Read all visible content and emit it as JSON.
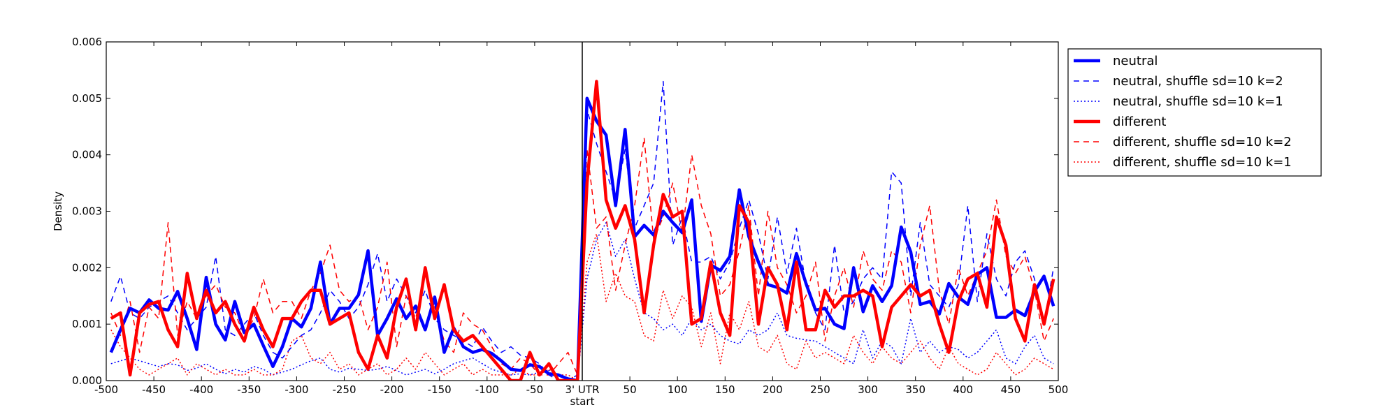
{
  "chart_data": {
    "type": "line",
    "xlabel": "",
    "ylabel": "Density",
    "xlim": [
      -500,
      500
    ],
    "ylim": [
      0,
      0.006
    ],
    "x_ticks": [
      -500,
      -450,
      -400,
      -350,
      -300,
      -250,
      -200,
      -150,
      -100,
      -50,
      0,
      50,
      100,
      150,
      200,
      250,
      300,
      350,
      400,
      450,
      500
    ],
    "x_tick_labels": [
      "-500",
      "-450",
      "-400",
      "-350",
      "-300",
      "-250",
      "-200",
      "-150",
      "-100",
      "-50",
      "3' UTR",
      "50",
      "100",
      "150",
      "200",
      "250",
      "300",
      "350",
      "400",
      "450",
      "500"
    ],
    "x_tick_label_extra": "start",
    "y_ticks": [
      0,
      0.001,
      0.002,
      0.003,
      0.004,
      0.005,
      0.006
    ],
    "y_tick_labels": [
      "0.000",
      "0.001",
      "0.002",
      "0.003",
      "0.004",
      "0.005",
      "0.006"
    ],
    "vline_x": 0,
    "grid": false,
    "legend_position": "outside top-right",
    "x": [
      -495,
      -485,
      -475,
      -465,
      -455,
      -445,
      -435,
      -425,
      -415,
      -405,
      -395,
      -385,
      -375,
      -365,
      -355,
      -345,
      -335,
      -325,
      -315,
      -305,
      -295,
      -285,
      -275,
      -265,
      -255,
      -245,
      -235,
      -225,
      -215,
      -205,
      -195,
      -185,
      -175,
      -165,
      -155,
      -145,
      -135,
      -125,
      -115,
      -105,
      -95,
      -85,
      -75,
      -65,
      -55,
      -45,
      -35,
      -25,
      -15,
      -5,
      5,
      15,
      25,
      35,
      45,
      55,
      65,
      75,
      85,
      95,
      105,
      115,
      125,
      135,
      145,
      155,
      165,
      175,
      185,
      195,
      205,
      215,
      225,
      235,
      245,
      255,
      265,
      275,
      285,
      295,
      305,
      315,
      325,
      335,
      345,
      355,
      365,
      375,
      385,
      395,
      405,
      415,
      425,
      435,
      445,
      455,
      465,
      475,
      485,
      495
    ],
    "series": [
      {
        "name": "neutral",
        "color": "#0000ff",
        "style": "solid-thick",
        "values": [
          0.0005,
          0.0009,
          0.00128,
          0.0012,
          0.00143,
          0.00128,
          0.00125,
          0.00158,
          0.0011,
          0.00055,
          0.00183,
          0.001,
          0.00072,
          0.0014,
          0.00085,
          0.001,
          0.00062,
          0.00025,
          0.0006,
          0.0011,
          0.00095,
          0.00128,
          0.0021,
          0.001,
          0.00128,
          0.00128,
          0.00152,
          0.0023,
          0.0008,
          0.0011,
          0.00145,
          0.0011,
          0.00132,
          0.0009,
          0.00148,
          0.0005,
          0.00093,
          0.0006,
          0.0005,
          0.00055,
          0.00048,
          0.00035,
          0.0002,
          0.00018,
          0.00028,
          0.00025,
          0.00012,
          0.0001,
          3e-05,
          0.0,
          0.005,
          0.0046,
          0.00435,
          0.0031,
          0.00445,
          0.00255,
          0.00275,
          0.00258,
          0.003,
          0.0028,
          0.00262,
          0.0032,
          0.00105,
          0.00205,
          0.00195,
          0.0022,
          0.00338,
          0.00255,
          0.0021,
          0.0017,
          0.00165,
          0.00155,
          0.00225,
          0.00172,
          0.00125,
          0.00128,
          0.001,
          0.00092,
          0.002,
          0.00122,
          0.00168,
          0.0014,
          0.00168,
          0.00272,
          0.00228,
          0.00135,
          0.0014,
          0.00118,
          0.00172,
          0.00148,
          0.00135,
          0.00188,
          0.002,
          0.00112,
          0.00112,
          0.00125,
          0.00115,
          0.00158,
          0.00185,
          0.00132
        ]
      },
      {
        "name": "neutral, shuffle sd=10 k=2",
        "color": "#0000ff",
        "style": "dashed",
        "values": [
          0.0014,
          0.00185,
          0.0012,
          0.0011,
          0.0013,
          0.0014,
          0.0015,
          0.0012,
          0.0009,
          0.0011,
          0.0013,
          0.0022,
          0.0009,
          0.0008,
          0.001,
          0.0012,
          0.0008,
          0.0005,
          0.0004,
          0.0006,
          0.0008,
          0.0009,
          0.0012,
          0.0016,
          0.0014,
          0.0011,
          0.0013,
          0.0017,
          0.00225,
          0.0014,
          0.0018,
          0.0015,
          0.0012,
          0.0016,
          0.0011,
          0.0009,
          0.0008,
          0.0007,
          0.0006,
          0.00095,
          0.0007,
          0.0005,
          0.0006,
          0.00045,
          0.0004,
          0.0003,
          0.0001,
          0.0,
          0.0,
          0.0001,
          0.0048,
          0.0042,
          0.0037,
          0.0032,
          0.0041,
          0.0027,
          0.0031,
          0.0035,
          0.0053,
          0.0024,
          0.0029,
          0.0021,
          0.0021,
          0.0022,
          0.0018,
          0.0021,
          0.0027,
          0.0032,
          0.0026,
          0.0018,
          0.0029,
          0.0019,
          0.0027,
          0.0017,
          0.0012,
          0.0009,
          0.0024,
          0.0012,
          0.0014,
          0.0018,
          0.002,
          0.0018,
          0.0037,
          0.0035,
          0.0015,
          0.0028,
          0.0017,
          0.0015,
          0.0013,
          0.0017,
          0.0031,
          0.0014,
          0.0026,
          0.0018,
          0.0015,
          0.0021,
          0.0023,
          0.0018,
          0.001,
          0.002
        ]
      },
      {
        "name": "neutral, shuffle sd=10 k=1",
        "color": "#0000ff",
        "style": "dotted",
        "values": [
          0.0003,
          0.00035,
          0.0004,
          0.00035,
          0.0003,
          0.00025,
          0.0003,
          0.00028,
          0.00018,
          0.00022,
          0.0003,
          0.0002,
          0.00012,
          0.0002,
          0.00015,
          0.00025,
          0.0002,
          0.0001,
          0.00015,
          0.0002,
          0.00028,
          0.00035,
          0.0004,
          0.0002,
          0.00015,
          0.00022,
          0.0002,
          0.00018,
          0.0002,
          0.00025,
          0.00018,
          0.0001,
          0.00015,
          0.0002,
          0.00012,
          0.0002,
          0.0003,
          0.00035,
          0.0004,
          0.0003,
          0.0002,
          0.00015,
          0.0001,
          0.00012,
          0.0001,
          0.00015,
          0.00018,
          0.0001,
          5e-05,
          0.0,
          0.0018,
          0.0025,
          0.0028,
          0.0022,
          0.0025,
          0.0018,
          0.0012,
          0.0011,
          0.0009,
          0.001,
          0.0008,
          0.0011,
          0.0009,
          0.001,
          0.0008,
          0.0007,
          0.00065,
          0.0009,
          0.0008,
          0.0009,
          0.0012,
          0.0008,
          0.00075,
          0.00072,
          0.0007,
          0.0006,
          0.0005,
          0.0004,
          0.0003,
          0.0009,
          0.0004,
          0.0007,
          0.0006,
          0.0003,
          0.0011,
          0.0005,
          0.0007,
          0.0005,
          0.0006,
          0.00055,
          0.0004,
          0.0005,
          0.0007,
          0.0009,
          0.0004,
          0.0003,
          0.0006,
          0.0008,
          0.0004,
          0.0003
        ]
      },
      {
        "name": "different",
        "color": "#ff0000",
        "style": "solid-thick",
        "values": [
          0.0011,
          0.0012,
          0.0001,
          0.0012,
          0.00135,
          0.0014,
          0.0009,
          0.0006,
          0.0019,
          0.0011,
          0.0016,
          0.0012,
          0.0014,
          0.001,
          0.0007,
          0.0013,
          0.0009,
          0.0006,
          0.0011,
          0.0011,
          0.0014,
          0.0016,
          0.0016,
          0.001,
          0.0011,
          0.0012,
          0.0005,
          0.0002,
          0.0008,
          0.0004,
          0.0013,
          0.0018,
          0.0009,
          0.002,
          0.0011,
          0.0017,
          0.0009,
          0.0007,
          0.0008,
          0.0006,
          0.0004,
          0.0002,
          0.0,
          0.0,
          0.0005,
          0.0001,
          0.0003,
          0.0,
          0.0,
          0.0,
          0.0035,
          0.0053,
          0.0032,
          0.0027,
          0.0031,
          0.0025,
          0.0012,
          0.0024,
          0.0033,
          0.0029,
          0.003,
          0.001,
          0.0011,
          0.0021,
          0.0012,
          0.0008,
          0.0031,
          0.0028,
          0.001,
          0.002,
          0.0017,
          0.0009,
          0.0021,
          0.0009,
          0.0009,
          0.0016,
          0.0013,
          0.0015,
          0.0015,
          0.0016,
          0.0015,
          0.0006,
          0.0013,
          0.0015,
          0.0017,
          0.0015,
          0.0016,
          0.001,
          0.0005,
          0.0014,
          0.0018,
          0.0019,
          0.0013,
          0.0029,
          0.0024,
          0.0011,
          0.0007,
          0.0017,
          0.001,
          0.0018
        ]
      },
      {
        "name": "different, shuffle sd=10 k=2",
        "color": "#ff0000",
        "style": "dashed",
        "values": [
          0.0012,
          0.0008,
          0.0014,
          0.0005,
          0.0013,
          0.0011,
          0.0028,
          0.0008,
          0.0014,
          0.0011,
          0.0015,
          0.0017,
          0.0013,
          0.0012,
          0.0008,
          0.0011,
          0.0018,
          0.0012,
          0.0014,
          0.0014,
          0.0011,
          0.0016,
          0.0019,
          0.0024,
          0.0016,
          0.0014,
          0.0015,
          0.0009,
          0.0013,
          0.0021,
          0.0006,
          0.0015,
          0.0011,
          0.0019,
          0.0013,
          0.0007,
          0.0005,
          0.0012,
          0.001,
          0.0009,
          0.0006,
          0.0003,
          0.0002,
          0.0004,
          0.0003,
          0.0001,
          0.0001,
          0.0003,
          0.0005,
          0.0001,
          0.0041,
          0.0027,
          0.0029,
          0.0016,
          0.0024,
          0.0031,
          0.0043,
          0.0025,
          0.0029,
          0.0035,
          0.0026,
          0.004,
          0.0031,
          0.0026,
          0.0015,
          0.0017,
          0.0023,
          0.0031,
          0.0015,
          0.003,
          0.002,
          0.0017,
          0.0012,
          0.0015,
          0.0021,
          0.0007,
          0.0015,
          0.002,
          0.0013,
          0.0023,
          0.0018,
          0.0016,
          0.0023,
          0.0021,
          0.0012,
          0.0024,
          0.0031,
          0.0016,
          0.001,
          0.002,
          0.0015,
          0.0019,
          0.0023,
          0.0032,
          0.0022,
          0.0019,
          0.0022,
          0.0016,
          0.0007,
          0.0011
        ]
      },
      {
        "name": "different, shuffle sd=10 k=1",
        "color": "#ff0000",
        "style": "dotted",
        "values": [
          0.0009,
          0.0006,
          0.0004,
          0.0002,
          0.0001,
          0.0002,
          0.0003,
          0.0004,
          0.0001,
          0.0003,
          0.0002,
          0.0001,
          0.0002,
          0.0001,
          0.0001,
          0.0002,
          0.0001,
          0.0001,
          0.0002,
          0.0007,
          0.0008,
          0.0004,
          0.0003,
          0.0005,
          0.0002,
          0.0003,
          0.0001,
          0.0002,
          0.0003,
          0.0001,
          0.0002,
          0.0004,
          0.0002,
          0.0005,
          0.0003,
          0.0001,
          0.0002,
          0.0003,
          0.0001,
          0.0002,
          0.0001,
          0.0001,
          0.0001,
          0.0002,
          0.0001,
          0.0001,
          0.0002,
          0.0001,
          0.0001,
          0.0,
          0.0021,
          0.0026,
          0.0014,
          0.0019,
          0.0015,
          0.0014,
          0.0008,
          0.0007,
          0.0016,
          0.0011,
          0.0015,
          0.0013,
          0.0006,
          0.0012,
          0.0003,
          0.0012,
          0.0009,
          0.0014,
          0.0006,
          0.0005,
          0.0008,
          0.0003,
          0.0002,
          0.0007,
          0.0004,
          0.0005,
          0.0004,
          0.0003,
          0.0008,
          0.0005,
          0.0003,
          0.0006,
          0.0004,
          0.0003,
          0.0005,
          0.0007,
          0.0004,
          0.0002,
          0.0006,
          0.0003,
          0.0002,
          0.0001,
          0.0002,
          0.0005,
          0.0003,
          0.0001,
          0.0002,
          0.0004,
          0.0003,
          0.0002
        ]
      }
    ]
  }
}
